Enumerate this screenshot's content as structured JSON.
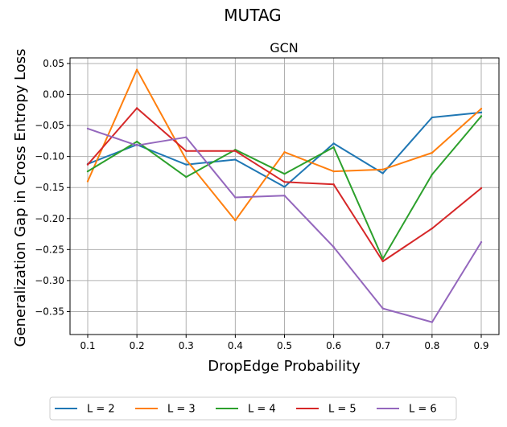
{
  "figure": {
    "suptitle": "MUTAG"
  },
  "chart_data": {
    "type": "line",
    "title": "GCN",
    "xlabel": "DropEdge Probability",
    "ylabel": "Generalization Gap in Cross Entropy Loss",
    "x": [
      0.1,
      0.2,
      0.3,
      0.4,
      0.5,
      0.6,
      0.7,
      0.8,
      0.9
    ],
    "xticks": [
      "0.1",
      "0.2",
      "0.3",
      "0.4",
      "0.5",
      "0.6",
      "0.7",
      "0.8",
      "0.9"
    ],
    "yticks": [
      "0.05",
      "0.00",
      "−0.05",
      "−0.10",
      "−0.15",
      "−0.20",
      "−0.25",
      "−0.30",
      "−0.35"
    ],
    "ytick_values": [
      0.05,
      0.0,
      -0.05,
      -0.1,
      -0.15,
      -0.2,
      -0.25,
      -0.3,
      -0.35
    ],
    "xlim": [
      0.064,
      0.936
    ],
    "ylim": [
      -0.387,
      0.059
    ],
    "grid": true,
    "legend_position": "bottom-center",
    "series": [
      {
        "name": "L = 2",
        "color": "#1f77b4",
        "values": [
          -0.112,
          -0.081,
          -0.113,
          -0.105,
          -0.149,
          -0.079,
          -0.127,
          -0.037,
          -0.029
        ]
      },
      {
        "name": "L = 3",
        "color": "#ff7f0e",
        "values": [
          -0.14,
          0.04,
          -0.105,
          -0.203,
          -0.093,
          -0.124,
          -0.121,
          -0.094,
          -0.023
        ]
      },
      {
        "name": "L = 4",
        "color": "#2ca02c",
        "values": [
          -0.124,
          -0.076,
          -0.133,
          -0.089,
          -0.128,
          -0.085,
          -0.265,
          -0.129,
          -0.035
        ]
      },
      {
        "name": "L = 5",
        "color": "#d62728",
        "values": [
          -0.113,
          -0.022,
          -0.091,
          -0.091,
          -0.141,
          -0.145,
          -0.269,
          -0.216,
          -0.151
        ]
      },
      {
        "name": "L = 6",
        "color": "#9467bd",
        "values": [
          -0.055,
          -0.082,
          -0.069,
          -0.166,
          -0.163,
          -0.246,
          -0.345,
          -0.367,
          -0.238
        ]
      }
    ]
  }
}
